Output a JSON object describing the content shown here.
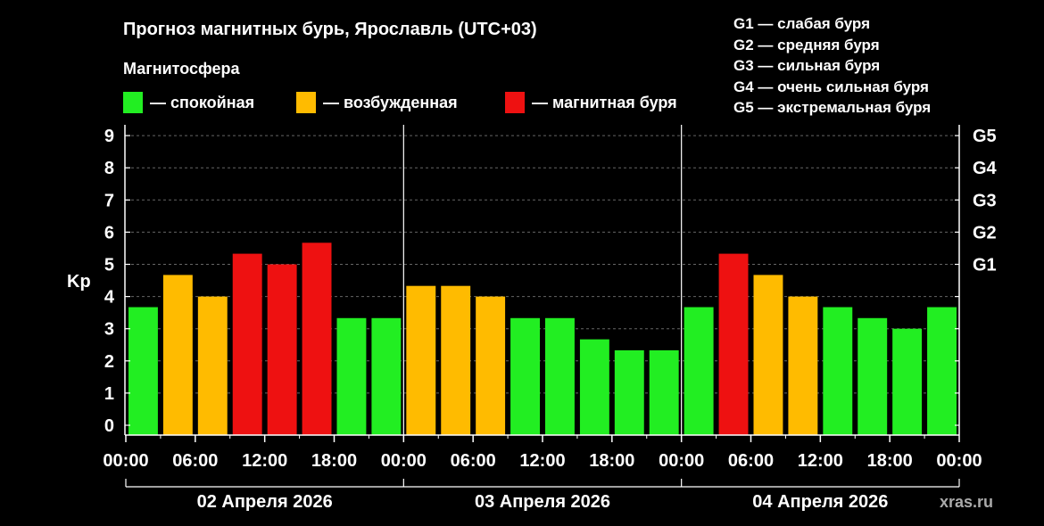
{
  "title": "Прогноз магнитных бурь, Ярославль (UTC+03)",
  "subtitle": "Магнитосфера",
  "legend": [
    {
      "label": "— спокойная",
      "color": "#22ee22"
    },
    {
      "label": "— возбужденная",
      "color": "#ffbb00"
    },
    {
      "label": "— магнитная буря",
      "color": "#ee1111"
    }
  ],
  "g_legend": [
    "G1 — слабая буря",
    "G2 — средняя буря",
    "G3 — сильная буря",
    "G4 — очень сильная буря",
    "G5 — экстремальная буря"
  ],
  "watermark": "xras.ru",
  "chart_data": {
    "type": "bar",
    "ylabel": "Kp",
    "ylim": [
      0,
      9
    ],
    "yticks": [
      "0",
      "1",
      "2",
      "3",
      "4",
      "5",
      "6",
      "7",
      "8",
      "9"
    ],
    "right_axis_labels": [
      {
        "kp": 5,
        "label": "G1"
      },
      {
        "kp": 6,
        "label": "G2"
      },
      {
        "kp": 7,
        "label": "G3"
      },
      {
        "kp": 8,
        "label": "G4"
      },
      {
        "kp": 9,
        "label": "G5"
      }
    ],
    "xtick_labels": [
      "00:00",
      "06:00",
      "12:00",
      "18:00",
      "00:00",
      "06:00",
      "12:00",
      "18:00",
      "00:00",
      "06:00",
      "12:00",
      "18:00",
      "00:00"
    ],
    "days": [
      "02 Апреля 2026",
      "03 Апреля 2026",
      "04 Апреля 2026"
    ],
    "grid": true,
    "colors": {
      "quiet": "#22ee22",
      "active": "#ffbb00",
      "storm": "#ee1111"
    },
    "values": [
      3.67,
      4.67,
      4.0,
      5.33,
      5.0,
      5.67,
      3.33,
      3.33,
      4.33,
      4.33,
      4.0,
      3.33,
      3.33,
      2.67,
      2.33,
      2.33,
      3.67,
      5.33,
      4.67,
      4.0,
      3.67,
      3.33,
      3.0,
      3.67
    ],
    "levels": [
      "quiet",
      "active",
      "active",
      "storm",
      "storm",
      "storm",
      "quiet",
      "quiet",
      "active",
      "active",
      "active",
      "quiet",
      "quiet",
      "quiet",
      "quiet",
      "quiet",
      "quiet",
      "storm",
      "active",
      "active",
      "quiet",
      "quiet",
      "quiet",
      "quiet"
    ]
  }
}
